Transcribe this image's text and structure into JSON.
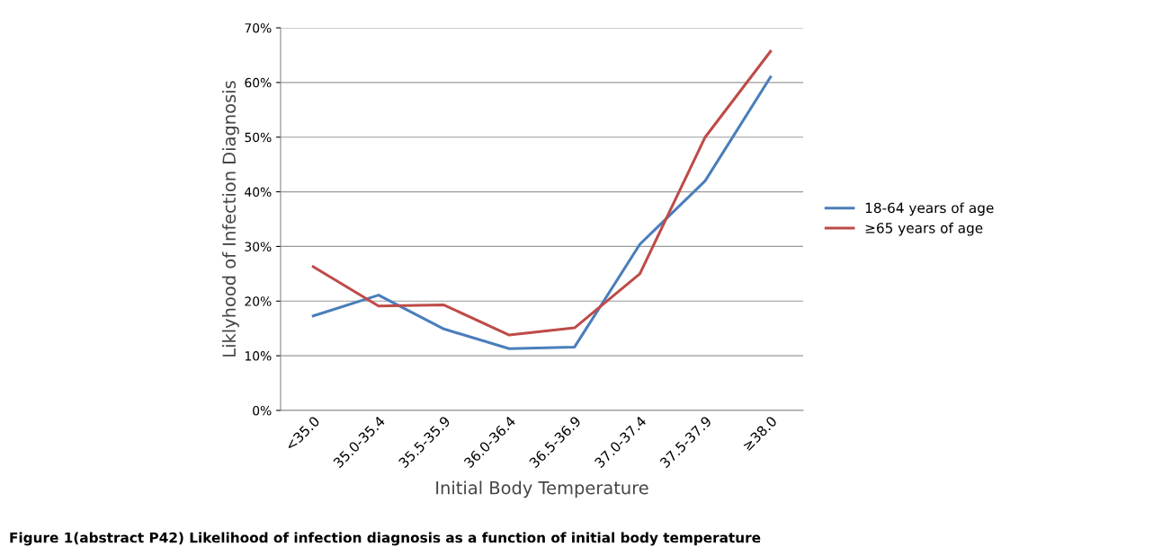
{
  "chart_data": {
    "type": "line",
    "xlabel": "Initial Body Temperature",
    "ylabel": "Liklyhood of Infection Diagnosis",
    "categories": [
      "<35.0",
      "35.0-35.4",
      "35.5-35.9",
      "36.0-36.4",
      "36.5-36.9",
      "37.0-37.4",
      "37.5-37.9",
      "≥38.0"
    ],
    "series": [
      {
        "name": "18-64 years of age",
        "color": "#4a7ebb",
        "values": [
          17.3,
          21.1,
          14.9,
          11.3,
          11.6,
          30.4,
          42.0,
          61.0
        ]
      },
      {
        "name": "≥65 years of age",
        "color": "#be4b48",
        "values": [
          26.3,
          19.1,
          19.3,
          13.8,
          15.1,
          25.0,
          50.0,
          65.7
        ]
      }
    ],
    "ylim": [
      0,
      70
    ],
    "yticks": [
      {
        "value": 0,
        "label": "0%"
      },
      {
        "value": 10,
        "label": "10%"
      },
      {
        "value": 20,
        "label": "20%"
      },
      {
        "value": 30,
        "label": "30%"
      },
      {
        "value": 40,
        "label": "40%"
      },
      {
        "value": 50,
        "label": "50%"
      },
      {
        "value": 60,
        "label": "60%"
      },
      {
        "value": 70,
        "label": "70%"
      }
    ],
    "grid": "y",
    "legend": "right",
    "marker": "none",
    "line_style": "solid",
    "annotations": [
      "Figure 1(abstract P42) Likelihood of infection diagnosis as a function of initial body temperature"
    ]
  }
}
